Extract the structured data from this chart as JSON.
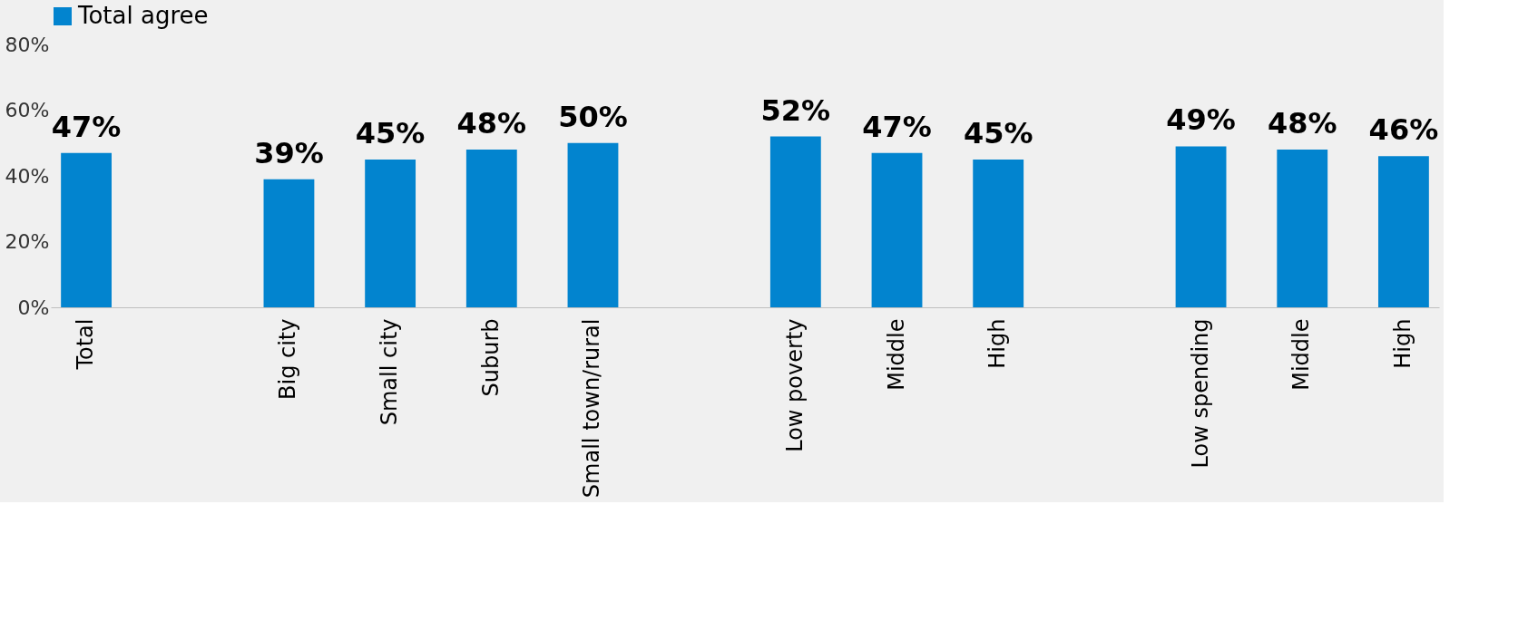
{
  "chart_data": {
    "type": "bar",
    "categories": [
      "Total",
      null,
      "Big city",
      "Small city",
      "Suburb",
      "Small town/rural",
      null,
      "Low poverty",
      "Middle",
      "High",
      null,
      "Low spending",
      "Middle",
      "High"
    ],
    "series": [
      {
        "name": "Total agree",
        "color": "#0284cf",
        "values": [
          47,
          null,
          39,
          45,
          48,
          50,
          null,
          52,
          47,
          45,
          null,
          49,
          48,
          46
        ],
        "value_labels": [
          "47%",
          null,
          "39%",
          "45%",
          "48%",
          "50%",
          null,
          "52%",
          "47%",
          "45%",
          null,
          "49%",
          "48%",
          "46%"
        ]
      }
    ],
    "ylim": [
      0,
      80
    ],
    "yticks": [
      {
        "value": 0,
        "label": "0%"
      },
      {
        "value": 20,
        "label": "20%"
      },
      {
        "value": 40,
        "label": "40%"
      },
      {
        "value": 60,
        "label": "60%"
      },
      {
        "value": 80,
        "label": "80%"
      }
    ],
    "grid": false,
    "legend": "top"
  }
}
